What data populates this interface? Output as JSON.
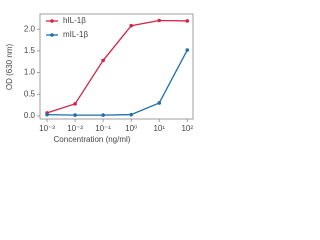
{
  "chart_data": {
    "type": "line",
    "x_label": "Concentration (ng/ml)",
    "y_label": "OD (630 nm)",
    "x": [
      0.001,
      0.01,
      0.1,
      1,
      10,
      100
    ],
    "series": [
      {
        "name": "hIL-1β",
        "color": "#d0264a",
        "values": [
          0.07,
          0.28,
          1.28,
          2.08,
          2.2,
          2.19
        ]
      },
      {
        "name": "mIL-1β",
        "color": "#1f6fa8",
        "values": [
          0.03,
          0.02,
          0.02,
          0.03,
          0.3,
          1.52
        ]
      }
    ],
    "xscale": "log",
    "xlim": [
      0.00056,
      160
    ],
    "xticks": [
      {
        "value": 0.001,
        "label": "10⁻³"
      },
      {
        "value": 0.01,
        "label": "10⁻²"
      },
      {
        "value": 0.1,
        "label": "10⁻¹"
      },
      {
        "value": 1,
        "label": "10⁰"
      },
      {
        "value": 10,
        "label": "10¹"
      },
      {
        "value": 100,
        "label": "10²"
      }
    ],
    "ylim": [
      -0.07,
      2.35
    ],
    "yticks": [
      {
        "value": 0,
        "label": "0.0"
      },
      {
        "value": 0.5,
        "label": "0.5"
      },
      {
        "value": 1,
        "label": "1.0"
      },
      {
        "value": 1.5,
        "label": "1.5"
      },
      {
        "value": 2,
        "label": "2.0"
      }
    ],
    "legend": "upper left"
  }
}
